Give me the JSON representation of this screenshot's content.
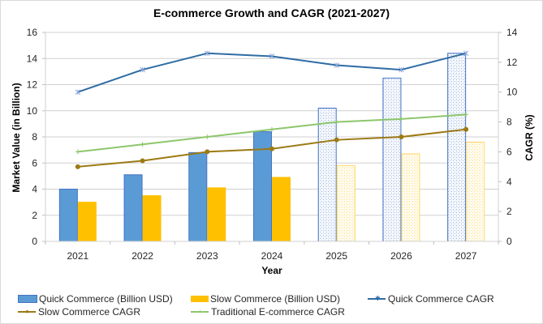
{
  "chart_data": {
    "type": "bar",
    "title": "E-commerce Growth and CAGR (2021-2027)",
    "xlabel": "Year",
    "ylabel": "Market Value (in Billion)",
    "y2label": "CAGR (%)",
    "ylim": [
      0,
      16
    ],
    "y2lim": [
      0,
      14
    ],
    "yticks": [
      "0",
      "2",
      "4",
      "6",
      "8",
      "10",
      "12",
      "14",
      "16"
    ],
    "y2ticks": [
      "0",
      "2",
      "4",
      "6",
      "8",
      "10",
      "12",
      "14"
    ],
    "grid": true,
    "legend_position": "bottom",
    "categories": [
      "2021",
      "2022",
      "2023",
      "2024",
      "2025",
      "2026",
      "2027"
    ],
    "projected_from": "2025",
    "bar_series": [
      {
        "name": "Quick Commerce (Billion USD)",
        "color": "#5b9bd5",
        "edge": "#4472c4",
        "values": [
          4.0,
          5.1,
          6.8,
          8.4,
          10.2,
          12.5,
          14.4
        ]
      },
      {
        "name": "Slow Commerce (Billion USD)",
        "color": "#ffc000",
        "edge": "#ffc000",
        "values": [
          3.0,
          3.5,
          4.1,
          4.9,
          5.8,
          6.7,
          7.6
        ]
      }
    ],
    "line_series": [
      {
        "name": "Quick Commerce CAGR",
        "color": "#2e6ca4",
        "marker": "star",
        "axis": "right",
        "values": [
          10.0,
          11.5,
          12.6,
          12.4,
          11.8,
          11.5,
          12.6
        ]
      },
      {
        "name": "Slow Commerce CAGR",
        "color": "#9c7a14",
        "marker": "circle",
        "axis": "right",
        "values": [
          5.0,
          5.4,
          6.0,
          6.2,
          6.8,
          7.0,
          7.5
        ]
      },
      {
        "name": "Traditional E-commerce CAGR",
        "color": "#8dc66a",
        "marker": "plus",
        "axis": "right",
        "values": [
          6.0,
          6.5,
          7.0,
          7.5,
          8.0,
          8.2,
          8.5
        ]
      }
    ]
  },
  "legend": {
    "quick_bar": "Quick Commerce (Billion USD)",
    "slow_bar": "Slow Commerce (Billion USD)",
    "quick_cagr": "Quick Commerce CAGR",
    "slow_cagr": "Slow Commerce CAGR",
    "trad_cagr": "Traditional E-commerce CAGR"
  }
}
